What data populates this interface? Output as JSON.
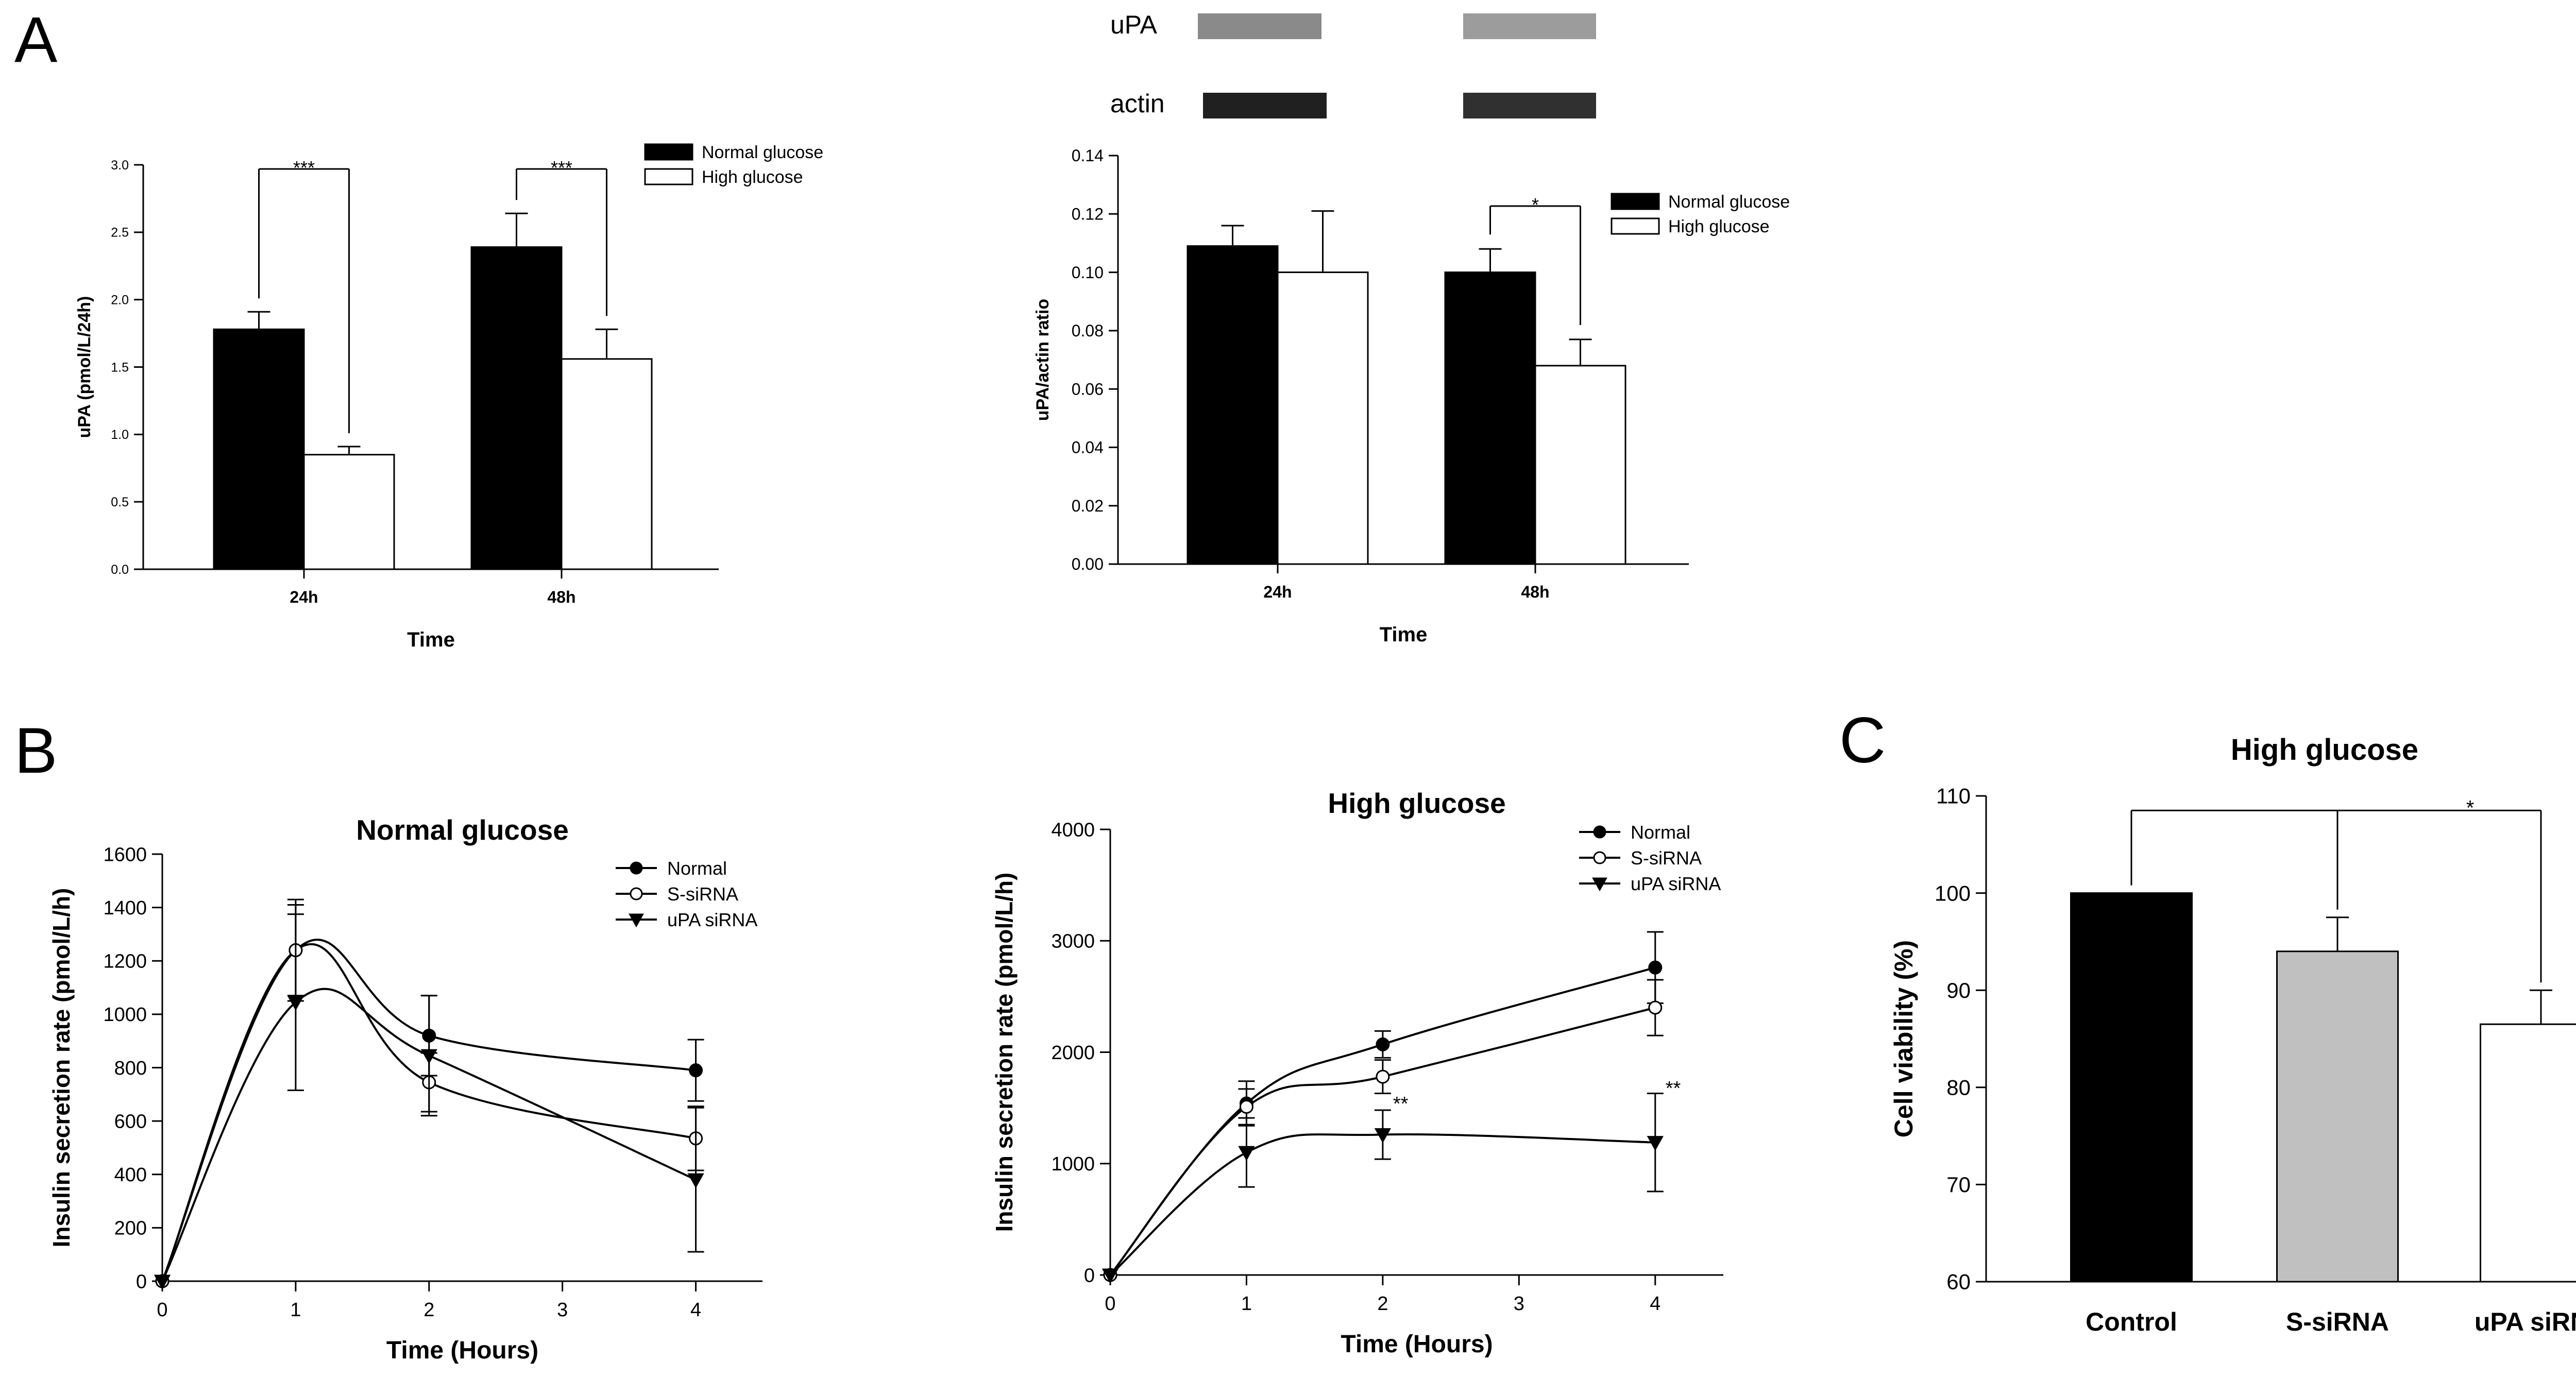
{
  "panel_labels": {
    "a": "A",
    "b": "B",
    "c": "C"
  },
  "colors": {
    "black": "#000000",
    "white": "#ffffff",
    "gray": "#c0c0c0"
  },
  "icons": {
    "blot": "western-blot-band-icon"
  },
  "blot": {
    "band1": "uPA",
    "band2": "actin"
  },
  "chart_data": [
    {
      "id": "A1",
      "type": "bar",
      "title": "",
      "xlabel": "Time",
      "ylabel": "uPA (pmol/L/24h)",
      "ylim": [
        0,
        3.0
      ],
      "yticks": [
        "0.0",
        "0.5",
        "1.0",
        "1.5",
        "2.0",
        "2.5",
        "3.0"
      ],
      "categories": [
        "24h",
        "48h"
      ],
      "series": [
        {
          "name": "Normal glucose",
          "fill": "#000000",
          "values": [
            1.78,
            2.39
          ],
          "errors": [
            0.13,
            0.25
          ]
        },
        {
          "name": "High glucose",
          "fill": "#ffffff",
          "values": [
            0.85,
            1.56
          ],
          "errors": [
            0.06,
            0.22
          ]
        }
      ],
      "significance": [
        {
          "label": "***"
        },
        {
          "label": "***"
        }
      ],
      "legend": "top-right"
    },
    {
      "id": "A2",
      "type": "bar",
      "title": "",
      "xlabel": "Time",
      "ylabel": "uPA/actin ratio",
      "ylim": [
        0,
        0.14
      ],
      "yticks": [
        "0.00",
        "0.02",
        "0.04",
        "0.06",
        "0.08",
        "0.10",
        "0.12",
        "0.14"
      ],
      "categories": [
        "24h",
        "48h"
      ],
      "series": [
        {
          "name": "Normal glucose",
          "fill": "#000000",
          "values": [
            0.109,
            0.1
          ],
          "errors": [
            0.007,
            0.008
          ]
        },
        {
          "name": "High glucose",
          "fill": "#ffffff",
          "values": [
            0.1,
            0.068
          ],
          "errors": [
            0.021,
            0.009
          ]
        }
      ],
      "significance": [
        {
          "label": "*"
        }
      ],
      "legend": "top-right"
    },
    {
      "id": "B1",
      "type": "line",
      "title": "Normal glucose",
      "xlabel": "Time (Hours)",
      "ylabel": "Insulin secretion rate (pmol/L/h)",
      "xlim": [
        0,
        4.5
      ],
      "ylim": [
        0,
        1600
      ],
      "xticks": [
        "0",
        "1",
        "2",
        "3",
        "4"
      ],
      "yticks": [
        "0",
        "200",
        "400",
        "600",
        "800",
        "1000",
        "1200",
        "1400",
        "1600"
      ],
      "series": [
        {
          "name": "Normal",
          "marker": "filled-circle",
          "x": [
            0,
            1,
            2,
            4
          ],
          "values": [
            0,
            1240,
            920,
            790
          ],
          "errors": [
            0,
            170,
            150,
            115
          ]
        },
        {
          "name": "S-siRNA",
          "marker": "open-circle",
          "x": [
            0,
            1,
            2,
            4
          ],
          "values": [
            0,
            1240,
            745,
            535
          ],
          "errors": [
            0,
            190,
            110,
            120
          ]
        },
        {
          "name": "uPA siRNA",
          "marker": "filled-triangle-down",
          "x": [
            0,
            1,
            2,
            4
          ],
          "values": [
            0,
            1045,
            845,
            380
          ],
          "errors": [
            0,
            330,
            225,
            270
          ]
        }
      ],
      "legend": "top-right"
    },
    {
      "id": "B2",
      "type": "line",
      "title": "High glucose",
      "xlabel": "Time (Hours)",
      "ylabel": "Insulin secretion rate (pmol/L/h)",
      "xlim": [
        0,
        4.5
      ],
      "ylim": [
        0,
        4000
      ],
      "xticks": [
        "0",
        "1",
        "2",
        "3",
        "4"
      ],
      "yticks": [
        "0",
        "1000",
        "2000",
        "3000",
        "4000"
      ],
      "series": [
        {
          "name": "Normal",
          "marker": "filled-circle",
          "x": [
            0,
            1,
            2,
            4
          ],
          "values": [
            0,
            1540,
            2070,
            2760
          ],
          "errors": [
            0,
            200,
            120,
            320
          ]
        },
        {
          "name": "S-siRNA",
          "marker": "open-circle",
          "x": [
            0,
            1,
            2,
            4
          ],
          "values": [
            0,
            1510,
            1780,
            2400
          ],
          "errors": [
            0,
            160,
            150,
            250
          ]
        },
        {
          "name": "uPA siRNA",
          "marker": "filled-triangle-down",
          "x": [
            0,
            1,
            2,
            4
          ],
          "values": [
            0,
            1100,
            1260,
            1190
          ],
          "errors": [
            0,
            310,
            220,
            440
          ]
        }
      ],
      "annotations": [
        {
          "x": 2,
          "label": "**"
        },
        {
          "x": 4,
          "label": "**"
        }
      ],
      "legend": "top-right"
    },
    {
      "id": "C",
      "type": "bar",
      "title": "High glucose",
      "xlabel": "",
      "ylabel": "Cell viability (%)",
      "ylim": [
        60,
        110
      ],
      "yticks": [
        "60",
        "70",
        "80",
        "90",
        "100",
        "110"
      ],
      "categories": [
        "Control",
        "S-siRNA",
        "uPA siRNA"
      ],
      "values": [
        100,
        94,
        86.5
      ],
      "errors": [
        0,
        3.5,
        3.5
      ],
      "fills": [
        "#000000",
        "#c0c0c0",
        "#ffffff"
      ],
      "significance": [
        {
          "label": "*"
        }
      ]
    }
  ]
}
